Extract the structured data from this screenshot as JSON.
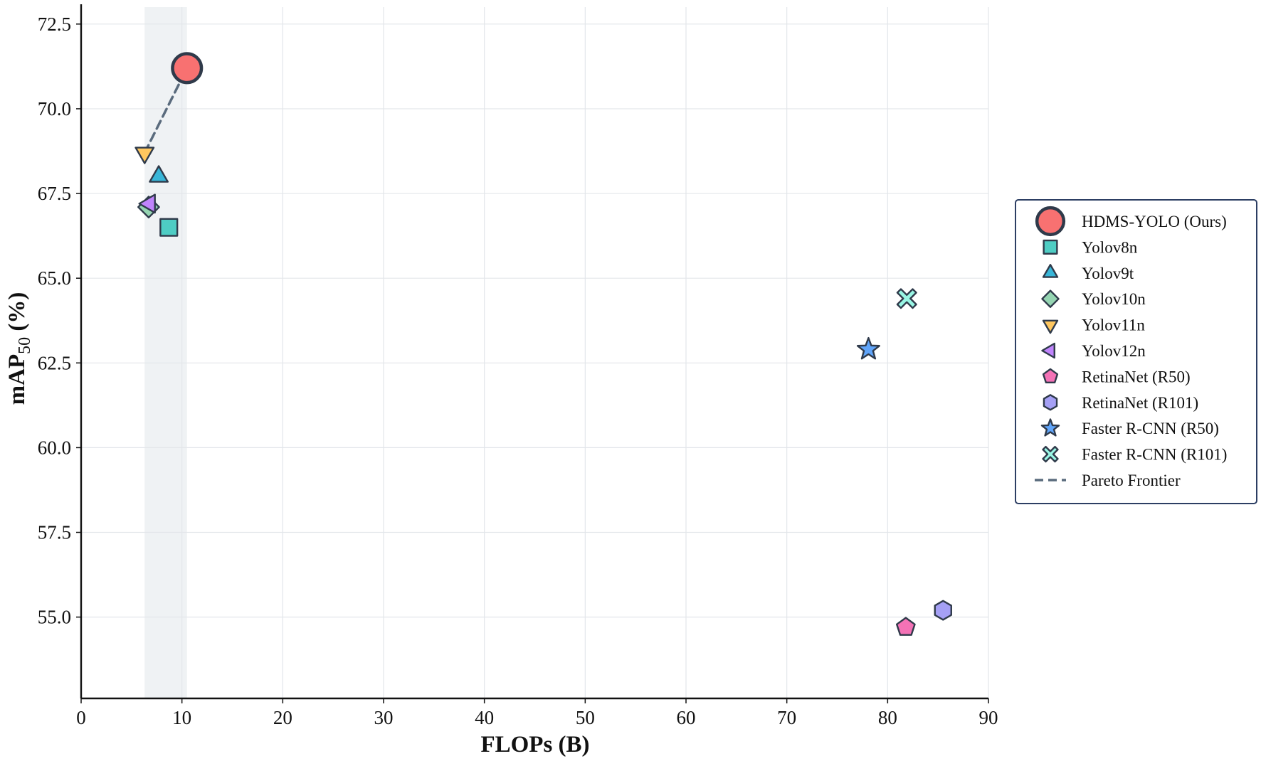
{
  "chart_data": {
    "type": "scatter",
    "xlabel": "FLOPs (B)",
    "ylabel_main": "mAP",
    "ylabel_sub": "50",
    "ylabel_suffix": " (%)",
    "xlim": [
      0,
      90
    ],
    "ylim": [
      52.6,
      73.0
    ],
    "xticks": [
      "0",
      "10",
      "20",
      "30",
      "40",
      "50",
      "60",
      "70",
      "80",
      "90"
    ],
    "xtick_values": [
      0,
      10,
      20,
      30,
      40,
      50,
      60,
      70,
      80,
      90
    ],
    "yticks": [
      "55.0",
      "57.5",
      "60.0",
      "62.5",
      "65.0",
      "67.5",
      "70.0",
      "72.5"
    ],
    "ytick_values": [
      55.0,
      57.5,
      60.0,
      62.5,
      65.0,
      67.5,
      70.0,
      72.5
    ],
    "grid": true,
    "legend_position": "right",
    "highlight_band": {
      "x": [
        6.3,
        10.5
      ]
    },
    "series": [
      {
        "name": "HDMS-YOLO (Ours)",
        "marker": "circle-large",
        "color": "#f87171",
        "x": 10.5,
        "y": 71.2
      },
      {
        "name": "Yolov8n",
        "marker": "square",
        "color": "#4ecdc4",
        "x": 8.7,
        "y": 66.5
      },
      {
        "name": "Yolov9t",
        "marker": "triangle-up",
        "color": "#38b6d8",
        "x": 7.7,
        "y": 68.0
      },
      {
        "name": "Yolov10n",
        "marker": "diamond",
        "color": "#95d5b2",
        "x": 6.7,
        "y": 67.1
      },
      {
        "name": "Yolov11n",
        "marker": "triangle-down",
        "color": "#ffc75f",
        "x": 6.3,
        "y": 68.7
      },
      {
        "name": "Yolov12n",
        "marker": "triangle-left",
        "color": "#c084fc",
        "x": 6.8,
        "y": 67.2
      },
      {
        "name": "RetinaNet (R50)",
        "marker": "pentagon",
        "color": "#f472b6",
        "x": 81.8,
        "y": 54.7
      },
      {
        "name": "RetinaNet (R101)",
        "marker": "hexagon",
        "color": "#a5a0f5",
        "x": 85.5,
        "y": 55.2
      },
      {
        "name": "Faster R-CNN (R50)",
        "marker": "star",
        "color": "#60a5fa",
        "x": 78.1,
        "y": 62.9
      },
      {
        "name": "Faster R-CNN (R101)",
        "marker": "x",
        "color": "#99f6e4",
        "x": 81.9,
        "y": 64.4
      }
    ],
    "pareto_frontier": {
      "name": "Pareto Frontier",
      "color": "#5a6b7d",
      "points": [
        [
          6.3,
          68.7
        ],
        [
          10.5,
          71.2
        ]
      ]
    }
  }
}
